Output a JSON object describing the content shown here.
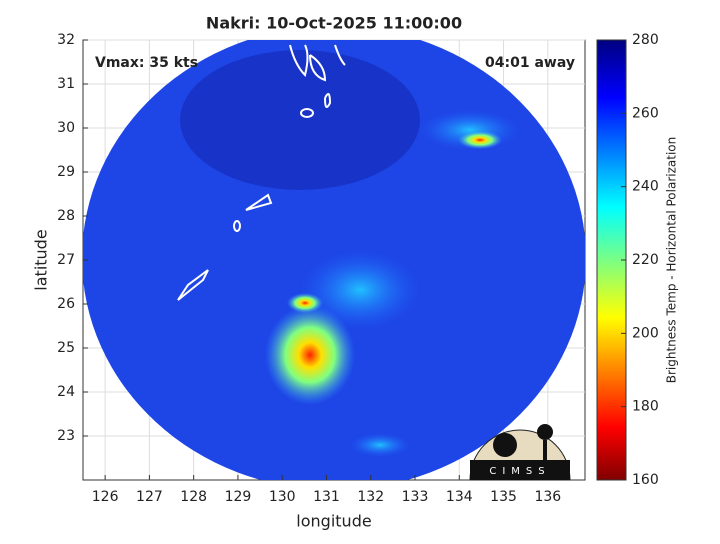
{
  "chart_data": {
    "type": "map",
    "title": "Nakri: 10-Oct-2025 11:00:00",
    "xlabel": "longitude",
    "ylabel": "latitude",
    "annotations": [
      "Vmax: 35 kts",
      "04:01 away"
    ],
    "xlim": [
      125.5,
      136.84
    ],
    "xticks": [
      126,
      127,
      128,
      129,
      130,
      131,
      132,
      133,
      134,
      135,
      136
    ],
    "ylim": [
      22,
      32
    ],
    "yticks": [
      23,
      24,
      25,
      26,
      27,
      28,
      29,
      30,
      31,
      32
    ],
    "grid": true,
    "colorbar_label": "Brightness Temp - Horizontal Polarization",
    "clim": [
      160,
      280
    ],
    "colorbar_ticks": [
      160,
      180,
      200,
      220,
      240,
      260,
      280
    ],
    "logo": "CIMSS"
  }
}
